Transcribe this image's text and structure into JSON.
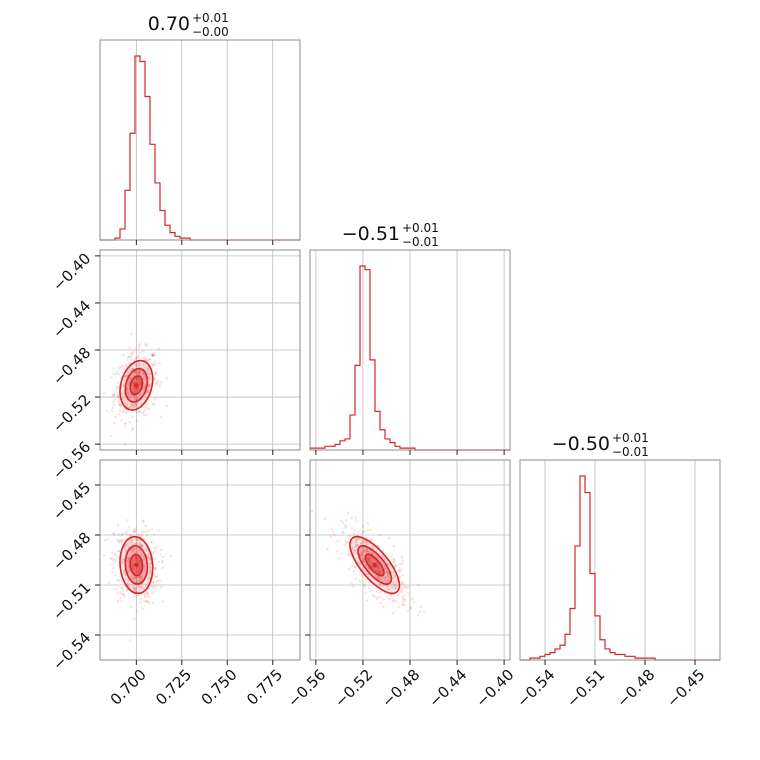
{
  "chart_data": {
    "type": "corner",
    "color": "#d62728",
    "params": [
      {
        "title_value": "0.70",
        "title_plus": "+0.01",
        "title_minus": "−0.00",
        "range": [
          0.68,
          0.79
        ],
        "ticks": [
          0.7,
          0.725,
          0.75,
          0.775
        ],
        "tick_labels": [
          "0.700",
          "0.725",
          "0.750",
          "0.775"
        ],
        "center": 0.7,
        "hist": [
          0,
          0,
          0,
          0.01,
          0.06,
          0.27,
          0.58,
          1.0,
          0.97,
          0.78,
          0.52,
          0.31,
          0.16,
          0.08,
          0.04,
          0.02,
          0.01,
          0.01,
          0,
          0,
          0,
          0,
          0,
          0,
          0,
          0,
          0,
          0,
          0,
          0,
          0,
          0,
          0,
          0,
          0,
          0,
          0,
          0,
          0,
          0
        ]
      },
      {
        "title_value": "−0.51",
        "title_plus": "+0.01",
        "title_minus": "−0.01",
        "range": [
          -0.565,
          -0.395
        ],
        "ticks": [
          -0.56,
          -0.52,
          -0.48,
          -0.44,
          -0.4
        ],
        "tick_labels": [
          "−0.56",
          "−0.52",
          "−0.48",
          "−0.44",
          "−0.40"
        ],
        "center": -0.51,
        "hist": [
          0.01,
          0.01,
          0.01,
          0.02,
          0.02,
          0.03,
          0.05,
          0.06,
          0.19,
          0.46,
          1.0,
          0.98,
          0.49,
          0.21,
          0.11,
          0.06,
          0.04,
          0.02,
          0.01,
          0.01,
          0.01,
          0,
          0,
          0,
          0,
          0,
          0,
          0,
          0,
          0,
          0,
          0,
          0,
          0,
          0,
          0,
          0,
          0,
          0,
          0
        ]
      },
      {
        "title_value": "−0.50",
        "title_plus": "+0.01",
        "title_minus": "−0.01",
        "range": [
          -0.555,
          -0.435
        ],
        "ticks": [
          -0.54,
          -0.51,
          -0.48,
          -0.45
        ],
        "tick_labels": [
          "−0.54",
          "−0.51",
          "−0.48",
          "−0.45"
        ],
        "center": -0.498,
        "hist": [
          0,
          0,
          0.01,
          0.01,
          0.02,
          0.03,
          0.04,
          0.06,
          0.08,
          0.14,
          0.28,
          0.62,
          1.0,
          0.91,
          0.47,
          0.24,
          0.11,
          0.06,
          0.04,
          0.03,
          0.03,
          0.02,
          0.02,
          0.01,
          0.01,
          0.01,
          0.01,
          0,
          0,
          0,
          0,
          0,
          0,
          0,
          0,
          0,
          0,
          0,
          0,
          0
        ]
      }
    ],
    "pairs": [
      {
        "x": 0,
        "y": 1,
        "correlation": 0.25,
        "spread_x": 0.0045,
        "spread_y": 0.0105,
        "contour_levels": [
          0.35,
          0.6,
          0.85
        ]
      },
      {
        "x": 0,
        "y": 2,
        "correlation": -0.1,
        "spread_x": 0.0045,
        "spread_y": 0.0085,
        "contour_levels": [
          0.35,
          0.6,
          0.85
        ]
      },
      {
        "x": 1,
        "y": 2,
        "correlation": -0.72,
        "spread_x": 0.0105,
        "spread_y": 0.0085,
        "contour_levels": [
          0.35,
          0.6,
          0.85
        ]
      }
    ],
    "grid": true
  }
}
